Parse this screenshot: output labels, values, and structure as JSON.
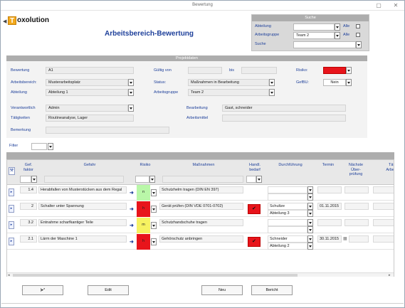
{
  "window": {
    "title": "Bewertung"
  },
  "logo": {
    "letter": "T",
    "text": "oxolution"
  },
  "page_title": "Arbeitsbereich-Bewertung",
  "search": {
    "header": "Suche",
    "abteilung_label": "Abteilung",
    "arbeitsgruppe_label": "Arbeitsgruppe",
    "arbeitsgruppe_value": "Team 2",
    "suche_label": "Suche",
    "alle_label": "Alle"
  },
  "section_title": "Projektdaten",
  "detail": {
    "bewertung_label": "Bewertung",
    "bewertung_value": "A1",
    "arbeitsbereich_label": "Arbeitsbereich:",
    "arbeitsbereich_value": "Musterarbeitsplatz",
    "abteilung_label": "Abteilung",
    "abteilung_value": "Abteilung 1",
    "gueltig_label": "Gültig von",
    "bis_label": "bis",
    "status_label": "Status:",
    "status_value": "Maßnahmen in Bearbeitung",
    "arbeitsgruppe_label": "Arbeitsgruppe",
    "arbeitsgruppe_value": "Team 2",
    "risiko_label": "Risiko:",
    "gefbu_label": "GefBU:",
    "gefbu_value": "Nein",
    "verantwortlich_label": "Verantwortlich",
    "verantwortlich_value": "Admin",
    "taetigkeiten_label": "Tätigkeiten",
    "taetigkeiten_value": "Routineanalyse, Lager",
    "bemerkung_label": "Bemerkung",
    "bearbeitung_label": "Bearbeitung",
    "bearbeitung_value": "Gast, schneider",
    "arbeitsmittel_label": "Arbeitsmittel"
  },
  "filter_label": "Filter",
  "grid": {
    "headers": {
      "gef_faktor": "Gef.\nfaktor",
      "gefahr": "Gefahr",
      "risiko": "Risiko",
      "massnahmen": "Maßnahmen",
      "handl_bedarf": "Handl.\nbedarf",
      "durchfuehrung": "Durchführung",
      "termin": "Termin",
      "naechste_ueberpruefung": "Nächste\nÜber-\nprüfung",
      "taetigkeit_arbeit": "Tät\nArbe"
    },
    "rows": [
      {
        "faktor": "1.4",
        "gefahr": "Herabfallen von Musterstücken aus dem Regal",
        "risiko": "n",
        "risiko_color": "#b9f7a8",
        "massnahme": "Schutzhelm tragen (DIN EN 397)",
        "handl": false,
        "person": "",
        "abteilung": "",
        "termin": ""
      },
      {
        "faktor": "2",
        "gefahr": "Schalter unter Spannung",
        "risiko": "h",
        "risiko_color": "#e8141b",
        "massnahme": "Gerät prüfen (DIN VDE 0701-0702)",
        "handl": true,
        "person": "Schultze",
        "abteilung": "Abteilung 3",
        "termin": "01.11.2015"
      },
      {
        "faktor": "3.2",
        "gefahr": "Entnahme scharfkantiger Teile",
        "risiko": "m",
        "risiko_color": "#f6f261",
        "massnahme": "Schutzhandschuhe tragen",
        "handl": false,
        "person": "",
        "abteilung": "",
        "termin": ""
      },
      {
        "faktor": "2.1",
        "gefahr": "Lärm der Maschine 1",
        "risiko": "h",
        "risiko_color": "#e8141b",
        "massnahme": "Gehörschutz anbringen",
        "handl": true,
        "person": "Schneider",
        "abteilung": "Abteilung 2",
        "termin": "30.11.2015"
      }
    ]
  },
  "buttons": {
    "new_record": "|▸*",
    "edit": "Edit",
    "neu": "Neu",
    "bericht": "Bericht"
  },
  "colors": {
    "accent": "#1d3f9a",
    "risk_red": "#e8141b",
    "header_gray": "#adadad"
  }
}
